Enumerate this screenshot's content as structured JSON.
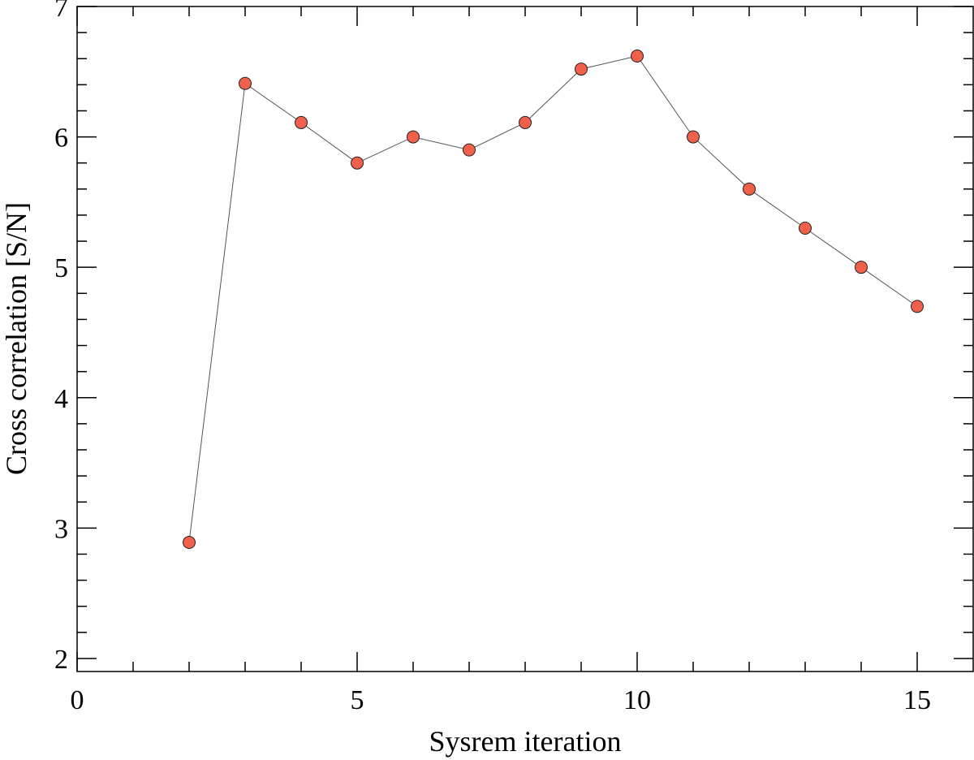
{
  "chart_data": {
    "type": "line",
    "title": "",
    "xlabel": "Sysrem iteration",
    "ylabel": "Cross correlation [S/N]",
    "xlim": [
      0,
      16
    ],
    "ylim": [
      1.9,
      7.0
    ],
    "xticks_major": [
      0,
      5,
      10,
      15
    ],
    "xtick_labels": [
      "0",
      "5",
      "10",
      "15"
    ],
    "xticks_minor_step": 1,
    "yticks_major": [
      2,
      3,
      4,
      5,
      6,
      7
    ],
    "ytick_labels": [
      "2",
      "3",
      "4",
      "5",
      "6",
      "7"
    ],
    "yticks_minor_step": 0.2,
    "grid": false,
    "series": [
      {
        "x": [
          2,
          3,
          4,
          5,
          6,
          7,
          8,
          9,
          10,
          11,
          12,
          13,
          14,
          15
        ],
        "y": [
          2.89,
          6.41,
          6.11,
          5.8,
          6.0,
          5.9,
          6.11,
          6.52,
          6.62,
          6.0,
          5.6,
          5.3,
          5.0,
          4.7
        ],
        "marker_color": "#f0604a",
        "line_color": "#555555"
      }
    ]
  }
}
